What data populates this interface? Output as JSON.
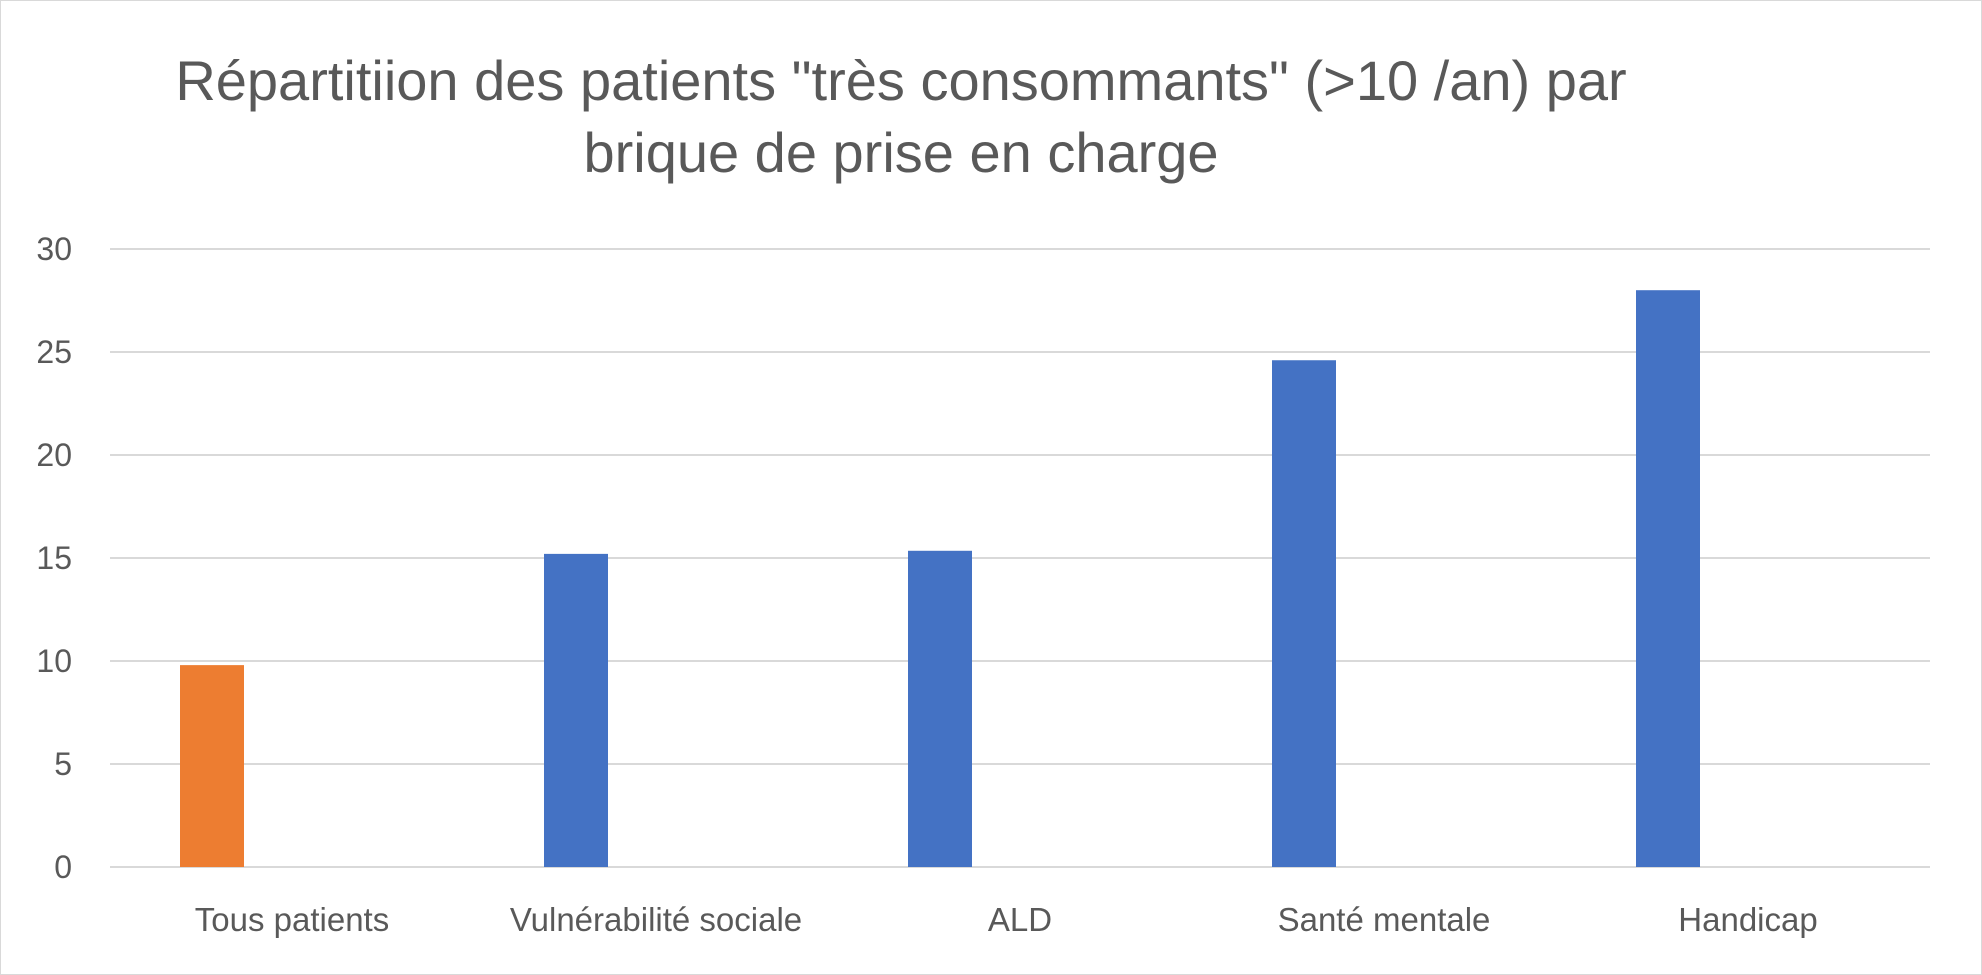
{
  "chart_data": {
    "type": "bar",
    "title_lines": [
      "Répartitiion des patients \"très consommants\" (>10 /an) par",
      "brique de prise en charge"
    ],
    "categories": [
      "Tous patients",
      "Vulnérabilité sociale",
      "ALD",
      "Santé mentale",
      "Handicap"
    ],
    "values": [
      9.8,
      15.2,
      15.35,
      24.6,
      28.0
    ],
    "bar_colors": [
      "#ED7D31",
      "#4472C4",
      "#4472C4",
      "#4472C4",
      "#4472C4"
    ],
    "ylim": [
      0,
      30
    ],
    "yticks": [
      0,
      5,
      10,
      15,
      20,
      25,
      30
    ],
    "xlabel": "",
    "ylabel": "",
    "grid": true,
    "legend": "none"
  },
  "colors": {
    "gridline": "#d9d9d9",
    "axis_text": "#595959"
  }
}
